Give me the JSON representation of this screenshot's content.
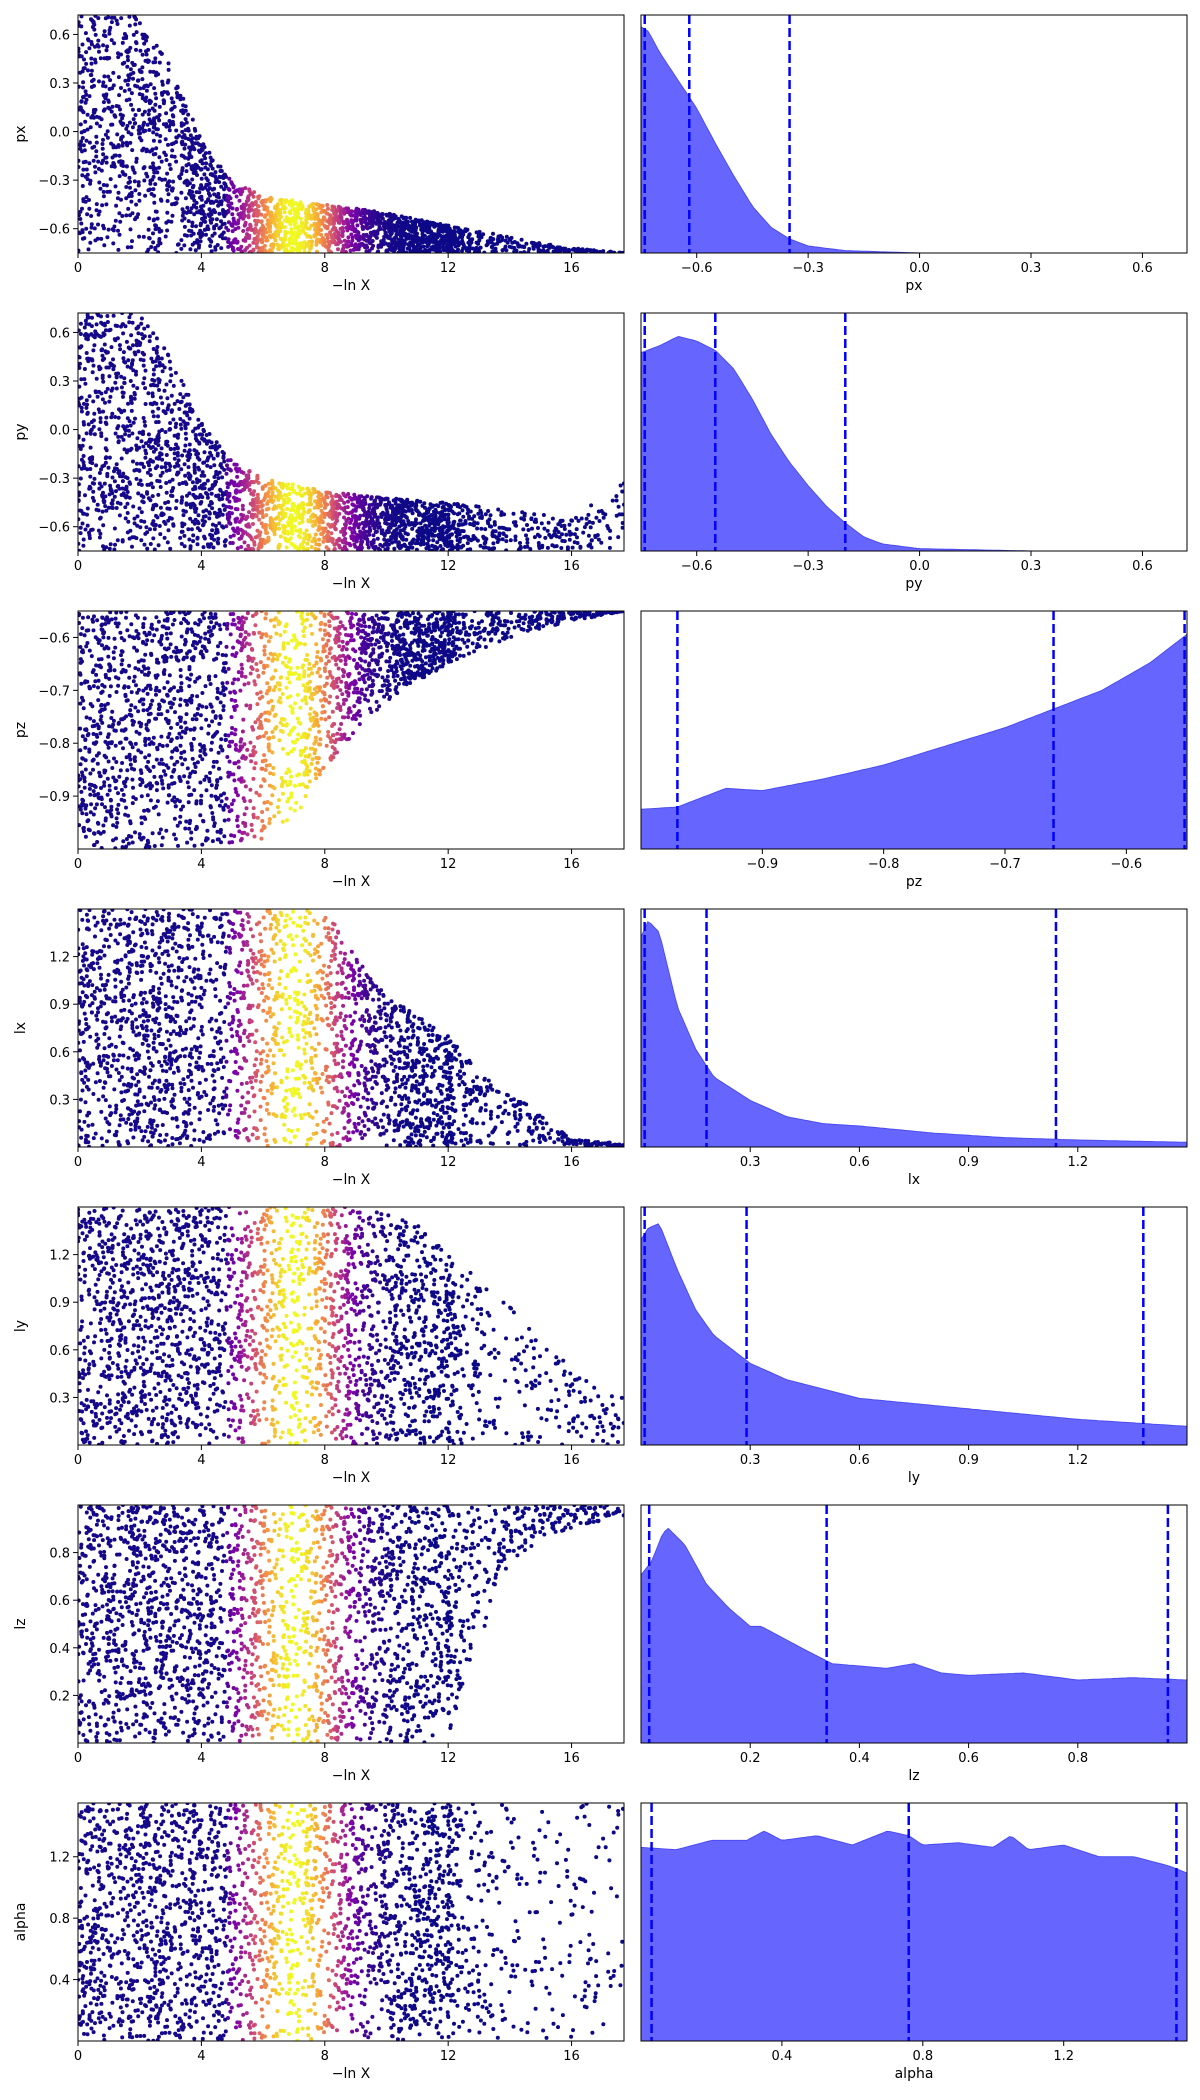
{
  "chart_data": [
    {
      "type": "scatter",
      "ylabel": "px",
      "xlabel": "−ln X",
      "xlim": [
        0,
        17.7
      ],
      "ylim": [
        -0.75,
        0.72
      ],
      "xticks": [
        0,
        4,
        8,
        12,
        16
      ],
      "yticks": [
        -0.6,
        -0.3,
        0.0,
        0.3,
        0.6
      ],
      "ytick_labels": [
        "−0.6",
        "−0.3",
        "0.0",
        "0.3",
        "0.6"
      ],
      "ymax_curve": [
        [
          0,
          0.72
        ],
        [
          2,
          0.72
        ],
        [
          3,
          0.4
        ],
        [
          4,
          -0.05
        ],
        [
          5,
          -0.3
        ],
        [
          6,
          -0.4
        ],
        [
          8,
          -0.45
        ],
        [
          10,
          -0.5
        ],
        [
          12,
          -0.58
        ],
        [
          14,
          -0.65
        ],
        [
          16,
          -0.72
        ],
        [
          17.7,
          -0.75
        ]
      ]
    },
    {
      "type": "area",
      "xlabel": "px",
      "xlim": [
        -0.75,
        0.72
      ],
      "ylim": [
        0,
        1
      ],
      "xticks": [
        -0.6,
        -0.3,
        0.0,
        0.3,
        0.6
      ],
      "xtick_labels": [
        "−0.6",
        "−0.3",
        "0.0",
        "0.3",
        "0.6"
      ],
      "vlines": [
        -0.74,
        -0.62,
        -0.35
      ],
      "curve": [
        [
          -0.75,
          0.97
        ],
        [
          -0.73,
          0.95
        ],
        [
          -0.7,
          0.86
        ],
        [
          -0.65,
          0.74
        ],
        [
          -0.6,
          0.62
        ],
        [
          -0.55,
          0.47
        ],
        [
          -0.5,
          0.33
        ],
        [
          -0.45,
          0.2
        ],
        [
          -0.4,
          0.11
        ],
        [
          -0.35,
          0.06
        ],
        [
          -0.3,
          0.03
        ],
        [
          -0.2,
          0.01
        ],
        [
          0.0,
          0.0
        ],
        [
          0.72,
          0.0
        ]
      ]
    },
    {
      "type": "scatter",
      "ylabel": "py",
      "xlabel": "−ln X",
      "xlim": [
        0,
        17.7
      ],
      "ylim": [
        -0.75,
        0.72
      ],
      "xticks": [
        0,
        4,
        8,
        12,
        16
      ],
      "yticks": [
        -0.6,
        -0.3,
        0.0,
        0.3,
        0.6
      ],
      "ytick_labels": [
        "−0.6",
        "−0.3",
        "0.0",
        "0.3",
        "0.6"
      ],
      "ymax_curve": [
        [
          0,
          0.72
        ],
        [
          2,
          0.72
        ],
        [
          3,
          0.45
        ],
        [
          4,
          0.05
        ],
        [
          5,
          -0.2
        ],
        [
          6,
          -0.3
        ],
        [
          8,
          -0.38
        ],
        [
          10,
          -0.42
        ],
        [
          12,
          -0.45
        ],
        [
          14,
          -0.5
        ],
        [
          16,
          -0.55
        ],
        [
          17.7,
          -0.3
        ]
      ]
    },
    {
      "type": "area",
      "xlabel": "py",
      "xlim": [
        -0.75,
        0.72
      ],
      "ylim": [
        0,
        1
      ],
      "xticks": [
        -0.6,
        -0.3,
        0.0,
        0.3,
        0.6
      ],
      "xtick_labels": [
        "−0.6",
        "−0.3",
        "0.0",
        "0.3",
        "0.6"
      ],
      "vlines": [
        -0.74,
        -0.55,
        -0.2
      ],
      "curve": [
        [
          -0.75,
          0.85
        ],
        [
          -0.7,
          0.88
        ],
        [
          -0.65,
          0.92
        ],
        [
          -0.6,
          0.9
        ],
        [
          -0.55,
          0.86
        ],
        [
          -0.5,
          0.78
        ],
        [
          -0.45,
          0.65
        ],
        [
          -0.4,
          0.5
        ],
        [
          -0.35,
          0.38
        ],
        [
          -0.3,
          0.28
        ],
        [
          -0.25,
          0.19
        ],
        [
          -0.2,
          0.12
        ],
        [
          -0.15,
          0.06
        ],
        [
          -0.1,
          0.03
        ],
        [
          0.0,
          0.01
        ],
        [
          0.3,
          0.0
        ],
        [
          0.72,
          0.0
        ]
      ]
    },
    {
      "type": "scatter",
      "ylabel": "pz",
      "xlabel": "−ln X",
      "xlim": [
        0,
        17.7
      ],
      "ylim": [
        -1.0,
        -0.55
      ],
      "xticks": [
        0,
        4,
        8,
        12,
        16
      ],
      "yticks": [
        -0.9,
        -0.8,
        -0.7,
        -0.6
      ],
      "ytick_labels": [
        "−0.9",
        "−0.8",
        "−0.7",
        "−0.6"
      ],
      "ymax_curve": [
        [
          0,
          -0.55
        ],
        [
          17.7,
          -0.55
        ]
      ],
      "ymin_curve": [
        [
          0,
          -1.0
        ],
        [
          5,
          -1.0
        ],
        [
          6,
          -0.98
        ],
        [
          7,
          -0.95
        ],
        [
          8,
          -0.85
        ],
        [
          9,
          -0.78
        ],
        [
          10,
          -0.72
        ],
        [
          12,
          -0.65
        ],
        [
          14,
          -0.6
        ],
        [
          16,
          -0.57
        ],
        [
          17.7,
          -0.55
        ]
      ]
    },
    {
      "type": "area",
      "xlabel": "pz",
      "xlim": [
        -1.0,
        -0.55
      ],
      "ylim": [
        0,
        1
      ],
      "xticks": [
        -0.9,
        -0.8,
        -0.7,
        -0.6
      ],
      "xtick_labels": [
        "−0.9",
        "−0.8",
        "−0.7",
        "−0.6"
      ],
      "vlines": [
        -0.97,
        -0.66,
        -0.552
      ],
      "curve": [
        [
          -1.0,
          0.17
        ],
        [
          -0.97,
          0.18
        ],
        [
          -0.95,
          0.22
        ],
        [
          -0.93,
          0.26
        ],
        [
          -0.9,
          0.25
        ],
        [
          -0.85,
          0.3
        ],
        [
          -0.8,
          0.36
        ],
        [
          -0.75,
          0.44
        ],
        [
          -0.7,
          0.52
        ],
        [
          -0.67,
          0.58
        ],
        [
          -0.65,
          0.62
        ],
        [
          -0.62,
          0.68
        ],
        [
          -0.6,
          0.74
        ],
        [
          -0.58,
          0.8
        ],
        [
          -0.56,
          0.88
        ],
        [
          -0.55,
          0.92
        ]
      ]
    },
    {
      "type": "scatter",
      "ylabel": "lx",
      "xlabel": "−ln X",
      "xlim": [
        0,
        17.7
      ],
      "ylim": [
        0,
        1.5
      ],
      "xticks": [
        0,
        4,
        8,
        12,
        16
      ],
      "yticks": [
        0.3,
        0.6,
        0.9,
        1.2
      ],
      "ytick_labels": [
        "0.3",
        "0.6",
        "0.9",
        "1.2"
      ],
      "ymax_curve": [
        [
          0,
          1.5
        ],
        [
          8,
          1.5
        ],
        [
          9,
          1.2
        ],
        [
          10,
          0.95
        ],
        [
          12,
          0.7
        ],
        [
          13,
          0.5
        ],
        [
          14,
          0.35
        ],
        [
          15,
          0.2
        ],
        [
          16,
          0.05
        ],
        [
          17.7,
          0.02
        ]
      ]
    },
    {
      "type": "area",
      "xlabel": "lx",
      "xlim": [
        0,
        1.5
      ],
      "ylim": [
        0,
        1
      ],
      "xticks": [
        0.3,
        0.6,
        0.9,
        1.2
      ],
      "xtick_labels": [
        "0.3",
        "0.6",
        "0.9",
        "1.2"
      ],
      "vlines": [
        0.01,
        0.18,
        1.14
      ],
      "curve": [
        [
          0.0,
          0.9
        ],
        [
          0.02,
          0.97
        ],
        [
          0.05,
          0.92
        ],
        [
          0.1,
          0.6
        ],
        [
          0.15,
          0.42
        ],
        [
          0.2,
          0.3
        ],
        [
          0.25,
          0.25
        ],
        [
          0.3,
          0.2
        ],
        [
          0.4,
          0.13
        ],
        [
          0.5,
          0.1
        ],
        [
          0.6,
          0.09
        ],
        [
          0.8,
          0.06
        ],
        [
          1.0,
          0.04
        ],
        [
          1.2,
          0.03
        ],
        [
          1.5,
          0.02
        ]
      ]
    },
    {
      "type": "scatter",
      "ylabel": "ly",
      "xlabel": "−ln X",
      "xlim": [
        0,
        17.7
      ],
      "ylim": [
        0,
        1.5
      ],
      "xticks": [
        0,
        4,
        8,
        12,
        16
      ],
      "yticks": [
        0.3,
        0.6,
        0.9,
        1.2
      ],
      "ytick_labels": [
        "0.3",
        "0.6",
        "0.9",
        "1.2"
      ],
      "ymax_curve": [
        [
          0,
          1.5
        ],
        [
          9,
          1.5
        ],
        [
          11,
          1.4
        ],
        [
          12,
          1.2
        ],
        [
          14,
          0.9
        ],
        [
          15,
          0.7
        ],
        [
          16,
          0.5
        ],
        [
          17.7,
          0.3
        ]
      ]
    },
    {
      "type": "area",
      "xlabel": "ly",
      "xlim": [
        0,
        1.5
      ],
      "ylim": [
        0,
        1
      ],
      "xticks": [
        0.3,
        0.6,
        0.9,
        1.2
      ],
      "xtick_labels": [
        "0.3",
        "0.6",
        "0.9",
        "1.2"
      ],
      "vlines": [
        0.01,
        0.29,
        1.38
      ],
      "curve": [
        [
          0.0,
          0.88
        ],
        [
          0.02,
          0.93
        ],
        [
          0.05,
          0.95
        ],
        [
          0.1,
          0.75
        ],
        [
          0.15,
          0.58
        ],
        [
          0.2,
          0.47
        ],
        [
          0.3,
          0.35
        ],
        [
          0.4,
          0.28
        ],
        [
          0.5,
          0.24
        ],
        [
          0.6,
          0.2
        ],
        [
          0.8,
          0.17
        ],
        [
          1.0,
          0.14
        ],
        [
          1.2,
          0.11
        ],
        [
          1.5,
          0.08
        ]
      ]
    },
    {
      "type": "scatter",
      "ylabel": "lz",
      "xlabel": "−ln X",
      "xlim": [
        0,
        17.7
      ],
      "ylim": [
        0,
        1.0
      ],
      "xticks": [
        0,
        4,
        8,
        12,
        16
      ],
      "yticks": [
        0.2,
        0.4,
        0.6,
        0.8
      ],
      "ytick_labels": [
        "0.2",
        "0.4",
        "0.6",
        "0.8"
      ],
      "ymax_curve": [
        [
          0,
          1.0
        ],
        [
          17.7,
          1.0
        ]
      ],
      "ymin_curve": [
        [
          0,
          0.0
        ],
        [
          12,
          0.0
        ],
        [
          12.5,
          0.2
        ],
        [
          13,
          0.4
        ],
        [
          13.5,
          0.6
        ],
        [
          14,
          0.75
        ],
        [
          15,
          0.85
        ],
        [
          16,
          0.9
        ],
        [
          17.7,
          0.95
        ]
      ]
    },
    {
      "type": "area",
      "xlabel": "lz",
      "xlim": [
        0,
        1.0
      ],
      "ylim": [
        0,
        1
      ],
      "xticks": [
        0.2,
        0.4,
        0.6,
        0.8
      ],
      "xtick_labels": [
        "0.2",
        "0.4",
        "0.6",
        "0.8"
      ],
      "vlines": [
        0.015,
        0.34,
        0.965
      ],
      "curve": [
        [
          0.0,
          0.72
        ],
        [
          0.02,
          0.78
        ],
        [
          0.04,
          0.9
        ],
        [
          0.05,
          0.92
        ],
        [
          0.08,
          0.85
        ],
        [
          0.12,
          0.68
        ],
        [
          0.16,
          0.58
        ],
        [
          0.2,
          0.5
        ],
        [
          0.22,
          0.5
        ],
        [
          0.26,
          0.45
        ],
        [
          0.3,
          0.4
        ],
        [
          0.35,
          0.34
        ],
        [
          0.4,
          0.33
        ],
        [
          0.45,
          0.32
        ],
        [
          0.5,
          0.34
        ],
        [
          0.55,
          0.3
        ],
        [
          0.6,
          0.29
        ],
        [
          0.7,
          0.3
        ],
        [
          0.8,
          0.27
        ],
        [
          0.9,
          0.28
        ],
        [
          1.0,
          0.27
        ]
      ]
    },
    {
      "type": "scatter",
      "ylabel": "alpha",
      "xlabel": "−ln X",
      "xlim": [
        0,
        17.7
      ],
      "ylim": [
        0,
        1.55
      ],
      "xticks": [
        0,
        4,
        8,
        12,
        16
      ],
      "yticks": [
        0.4,
        0.8,
        1.2
      ],
      "ytick_labels": [
        "0.4",
        "0.8",
        "1.2"
      ],
      "ymax_curve": [
        [
          0,
          1.55
        ],
        [
          17.7,
          1.55
        ]
      ]
    },
    {
      "type": "area",
      "xlabel": "alpha",
      "xlim": [
        0,
        1.55
      ],
      "ylim": [
        0,
        1
      ],
      "xticks": [
        0.4,
        0.8,
        1.2
      ],
      "xtick_labels": [
        "0.4",
        "0.8",
        "1.2"
      ],
      "vlines": [
        0.03,
        0.76,
        1.52
      ],
      "curve": [
        [
          0.0,
          0.83
        ],
        [
          0.1,
          0.82
        ],
        [
          0.2,
          0.86
        ],
        [
          0.3,
          0.86
        ],
        [
          0.35,
          0.9
        ],
        [
          0.4,
          0.86
        ],
        [
          0.5,
          0.88
        ],
        [
          0.6,
          0.84
        ],
        [
          0.7,
          0.9
        ],
        [
          0.76,
          0.88
        ],
        [
          0.8,
          0.84
        ],
        [
          0.9,
          0.85
        ],
        [
          1.0,
          0.83
        ],
        [
          1.05,
          0.88
        ],
        [
          1.1,
          0.82
        ],
        [
          1.2,
          0.84
        ],
        [
          1.3,
          0.79
        ],
        [
          1.4,
          0.79
        ],
        [
          1.5,
          0.75
        ],
        [
          1.55,
          0.72
        ]
      ]
    }
  ]
}
